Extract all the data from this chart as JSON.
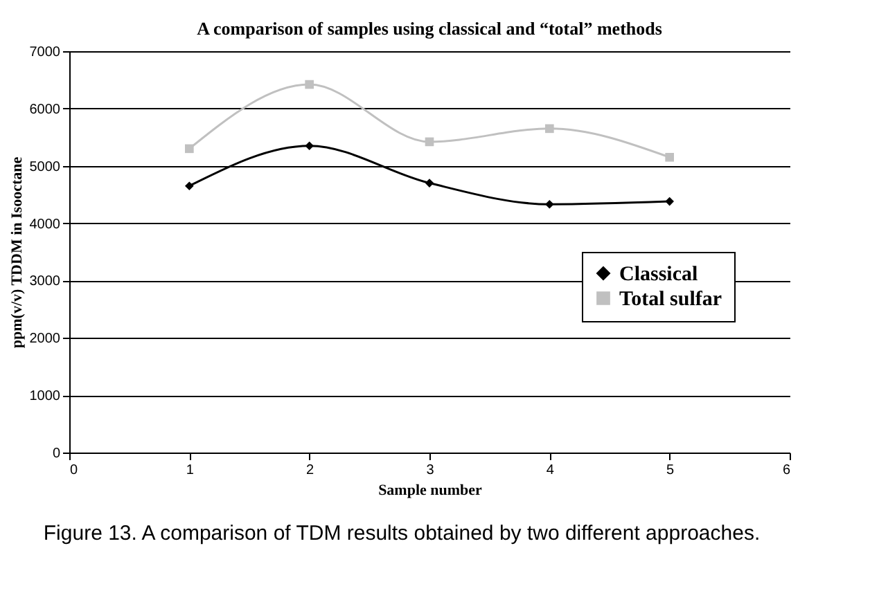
{
  "chart_data": {
    "type": "line",
    "title": "A comparison of samples using classical and “total” methods",
    "xlabel": "Sample number",
    "ylabel": "ppm(v/v) TDDM in Isooctane",
    "x": [
      1,
      2,
      3,
      4,
      5
    ],
    "xlim": [
      0,
      6
    ],
    "xticks": [
      0,
      1,
      2,
      3,
      4,
      5,
      6
    ],
    "ylim": [
      0,
      7000
    ],
    "yticks": [
      0,
      1000,
      2000,
      3000,
      4000,
      5000,
      6000,
      7000
    ],
    "grid": "y",
    "legend": "right",
    "series": [
      {
        "name": "Classical",
        "color": "#000000",
        "marker": "diamond",
        "values": [
          4650,
          5350,
          4700,
          4330,
          4380
        ]
      },
      {
        "name": "Total sulfar",
        "color": "#c0c0c0",
        "marker": "square",
        "values": [
          5300,
          6420,
          5420,
          5650,
          5150
        ]
      }
    ],
    "annotations": [
      "Figure 13. A comparison of TDM results obtained by two different approaches."
    ]
  }
}
